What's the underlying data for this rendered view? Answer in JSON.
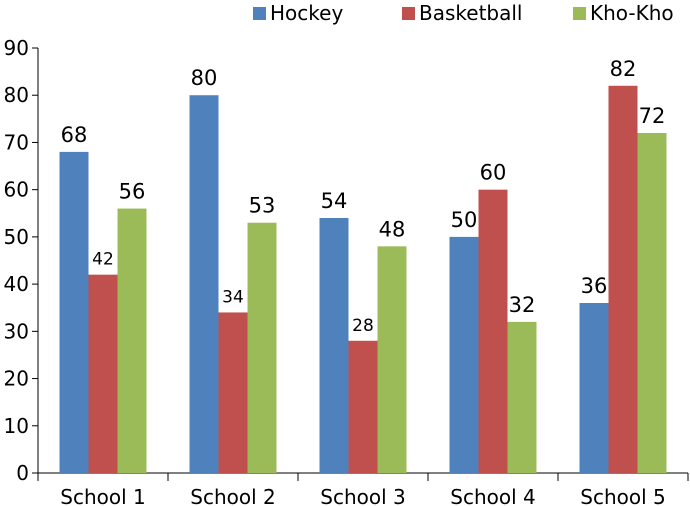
{
  "chart_data": {
    "type": "bar",
    "title": "",
    "xlabel": "",
    "ylabel": "",
    "categories": [
      "School 1",
      "School 2",
      "School 3",
      "School 4",
      "School 5"
    ],
    "series": [
      {
        "name": "Hockey",
        "color": "#4F81BD",
        "values": [
          68,
          80,
          54,
          50,
          36
        ]
      },
      {
        "name": "Basketball",
        "color": "#C0504D",
        "values": [
          42,
          34,
          28,
          60,
          82
        ]
      },
      {
        "name": "Kho-Kho",
        "color": "#9BBB59",
        "values": [
          56,
          53,
          48,
          32,
          72
        ]
      }
    ],
    "ylim": [
      0,
      90
    ],
    "yticks": [
      0,
      10,
      20,
      30,
      40,
      50,
      60,
      70,
      80,
      90
    ],
    "legend_position": "top-right",
    "grid": false,
    "data_labels": true
  }
}
